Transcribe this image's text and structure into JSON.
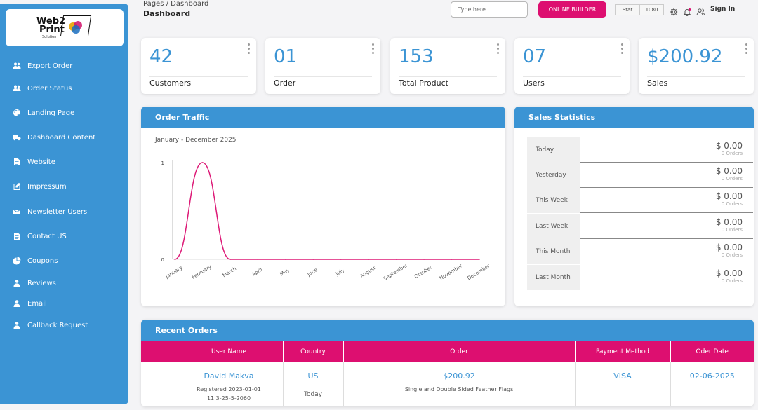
{
  "sidebar": {
    "logo": {
      "line1": "Web2",
      "line2": "Print",
      "tagline": "Solution"
    },
    "items": [
      {
        "label": "Export Order",
        "icon": "users-icon"
      },
      {
        "label": "Order Status",
        "icon": "users-icon"
      },
      {
        "label": "Landing Page",
        "icon": "paint-icon"
      },
      {
        "label": "Dashboard Content",
        "icon": "truck-icon"
      },
      {
        "label": "Website",
        "icon": "document-icon"
      },
      {
        "label": "Impressum",
        "icon": "edit-icon"
      },
      {
        "label": "Newsletter Users",
        "icon": "envelope-icon"
      },
      {
        "label": "Contact US",
        "icon": "document-icon"
      },
      {
        "label": "Coupons",
        "icon": "pie-icon"
      },
      {
        "label": "Reviews",
        "icon": "user-icon"
      },
      {
        "label": "Email",
        "icon": "user-icon"
      },
      {
        "label": "Callback Request",
        "icon": "user-icon"
      }
    ]
  },
  "header": {
    "breadcrumb": "Pages / Dashboard",
    "title": "Dashboard",
    "search_placeholder": "Type here...",
    "builder_label": "ONLINE BUILDER",
    "star_label": "Star",
    "star_count": "1080",
    "signin_label": "Sign In"
  },
  "cards": [
    {
      "value": "42",
      "label": "Customers"
    },
    {
      "value": "01",
      "label": "Order"
    },
    {
      "value": "153",
      "label": "Total Product"
    },
    {
      "value": "07",
      "label": "Users"
    },
    {
      "value": "$200.92",
      "label": "Sales"
    }
  ],
  "traffic": {
    "title": "Order Traffic",
    "subtitle": "January - December 2025"
  },
  "chart_data": {
    "type": "line",
    "categories": [
      "January",
      "February",
      "March",
      "April",
      "May",
      "June",
      "July",
      "August",
      "September",
      "October",
      "November",
      "December"
    ],
    "series": [
      {
        "values": [
          0,
          1,
          0,
          0,
          0,
          0,
          0,
          0,
          0,
          0,
          0,
          0
        ],
        "color": "#dd1a77"
      }
    ],
    "ylim": [
      0,
      1
    ],
    "yticks": [
      "0",
      "1"
    ],
    "grid": false
  },
  "stats": {
    "title": "Sales Statistics",
    "rows": [
      {
        "name": "Today",
        "amount": "$ 0.00",
        "orders": "0 Orders"
      },
      {
        "name": "Yesterday",
        "amount": "$ 0.00",
        "orders": "0 Orders"
      },
      {
        "name": "This Week",
        "amount": "$ 0.00",
        "orders": "0 Orders"
      },
      {
        "name": "Last Week",
        "amount": "$ 0.00",
        "orders": "0 Orders"
      },
      {
        "name": "This Month",
        "amount": "$ 0.00",
        "orders": "0 Orders"
      },
      {
        "name": "Last Month",
        "amount": "$ 0.00",
        "orders": "0 Orders"
      }
    ]
  },
  "recent_orders": {
    "title": "Recent Orders",
    "columns": [
      "User Name",
      "Country",
      "Order",
      "Payment Method",
      "Oder Date"
    ],
    "rows": [
      {
        "user": "David Makva",
        "registered": "Registered 2023-01-01",
        "phone": "11 3-25-5-2060",
        "country": "US",
        "country_sub": "Today",
        "order_total": "$200.92",
        "order_desc": "Single and Double Sided Feather Flags",
        "payment": "VISA",
        "date": "02-06-2025"
      }
    ]
  },
  "colors": {
    "primary": "#3b94d4",
    "accent": "#dd0f70"
  }
}
